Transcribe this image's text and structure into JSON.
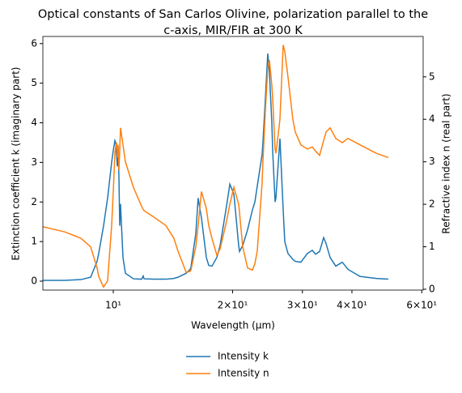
{
  "chart_data": {
    "type": "line",
    "title": [
      "Optical constants of San Carlos Olivine, polarization parallel to the",
      "c-axis, MIR/FIR at 300 K"
    ],
    "xlabel": "Wavelength (μm)",
    "ylabel": "Extinction coefficient k (imaginary part)",
    "y2label": "Refractive index n (real part)",
    "xscale": "log",
    "xlim": [
      6.644,
      60.5
    ],
    "xticks": [
      {
        "value": 10,
        "label": "10¹"
      },
      {
        "value": 20,
        "label": "2×10¹"
      },
      {
        "value": 30,
        "label": "3×10¹"
      },
      {
        "value": 40,
        "label": "4×10¹"
      },
      {
        "value": 60,
        "label": "6×10¹"
      }
    ],
    "ylim": [
      -0.225,
      6.18
    ],
    "yticks": [
      0,
      1,
      2,
      3,
      4,
      5,
      6
    ],
    "y2lim": [
      -0.02,
      5.95
    ],
    "y2ticks": [
      0,
      1,
      2,
      3,
      4,
      5
    ],
    "legend": "bottom",
    "x": [
      6.644,
      7.545,
      8.286,
      8.767,
      9.103,
      9.189,
      9.452,
      9.676,
      9.906,
      10,
      10.095,
      10.142,
      10.19,
      10.24,
      10.286,
      10.335,
      10.383,
      10.43,
      10.58,
      10.73,
      11.24,
      11.79,
      11.9,
      11.96,
      12.65,
      13.57,
      14.22,
      14.56,
      14.7,
      15.27,
      15.63,
      15.7,
      16.15,
      16.37,
      16.69,
      17.17,
      17.41,
      17.74,
      18.25,
      18.6,
      19.31,
      19.68,
      20.15,
      20.72,
      20.82,
      21.21,
      21.82,
      22.44,
      22.76,
      23.08,
      23.74,
      23.85,
      24.19,
      24.53,
      24.76,
      25.12,
      25.24,
      25.6,
      25.72,
      25.96,
      26.33,
      26.83,
      27.08,
      27.59,
      28.38,
      28.78,
      29.74,
      30.88,
      31.77,
      32.38,
      33.15,
      33.94,
      34.42,
      35.24,
      36.42,
      37.82,
      39.08,
      41.92,
      46.07,
      49.42
    ],
    "series": [
      {
        "name": "Intensity k",
        "color": "#1f77b4",
        "axis": "y",
        "values": [
          0.02,
          0.02,
          0.04,
          0.1,
          0.5,
          0.7,
          1.4,
          2.1,
          3.0,
          3.3,
          3.55,
          3.5,
          3.2,
          2.9,
          3.4,
          2.6,
          1.4,
          1.95,
          0.6,
          0.2,
          0.06,
          0.05,
          0.13,
          0.06,
          0.05,
          0.05,
          0.07,
          0.1,
          0.12,
          0.2,
          0.3,
          0.35,
          1.2,
          2.1,
          1.6,
          0.6,
          0.4,
          0.38,
          0.6,
          0.9,
          1.9,
          2.45,
          2.2,
          0.9,
          0.75,
          0.9,
          1.3,
          1.8,
          2.0,
          2.4,
          3.2,
          3.5,
          4.6,
          5.75,
          5.3,
          4.0,
          3.3,
          2.0,
          2.1,
          2.7,
          3.6,
          1.8,
          1.0,
          0.7,
          0.55,
          0.5,
          0.48,
          0.7,
          0.78,
          0.68,
          0.75,
          1.1,
          0.95,
          0.6,
          0.38,
          0.48,
          0.3,
          0.12,
          0.07,
          0.05
        ]
      },
      {
        "name": "Intensity n",
        "color": "#ff7f0e",
        "axis": "y2",
        "values": [
          1.47,
          1.35,
          1.2,
          1.0,
          0.5,
          0.3,
          0.05,
          0.2,
          1.5,
          2.3,
          3.2,
          3.35,
          3.45,
          3.1,
          3.4,
          2.8,
          3.3,
          3.8,
          3.4,
          3.0,
          2.4,
          1.95,
          1.88,
          1.85,
          1.7,
          1.5,
          1.2,
          0.9,
          0.8,
          0.4,
          0.42,
          0.45,
          1.0,
          1.5,
          2.3,
          1.9,
          1.5,
          1.2,
          0.8,
          0.95,
          1.6,
          2.0,
          2.4,
          2.0,
          1.8,
          1.0,
          0.5,
          0.45,
          0.6,
          0.9,
          2.5,
          3.0,
          4.2,
          5.2,
          5.4,
          4.8,
          4.5,
          3.3,
          3.2,
          3.5,
          4.0,
          5.75,
          5.6,
          5.0,
          4.0,
          3.7,
          3.4,
          3.3,
          3.35,
          3.25,
          3.15,
          3.5,
          3.7,
          3.8,
          3.55,
          3.45,
          3.55,
          3.4,
          3.2,
          3.1
        ]
      }
    ]
  }
}
